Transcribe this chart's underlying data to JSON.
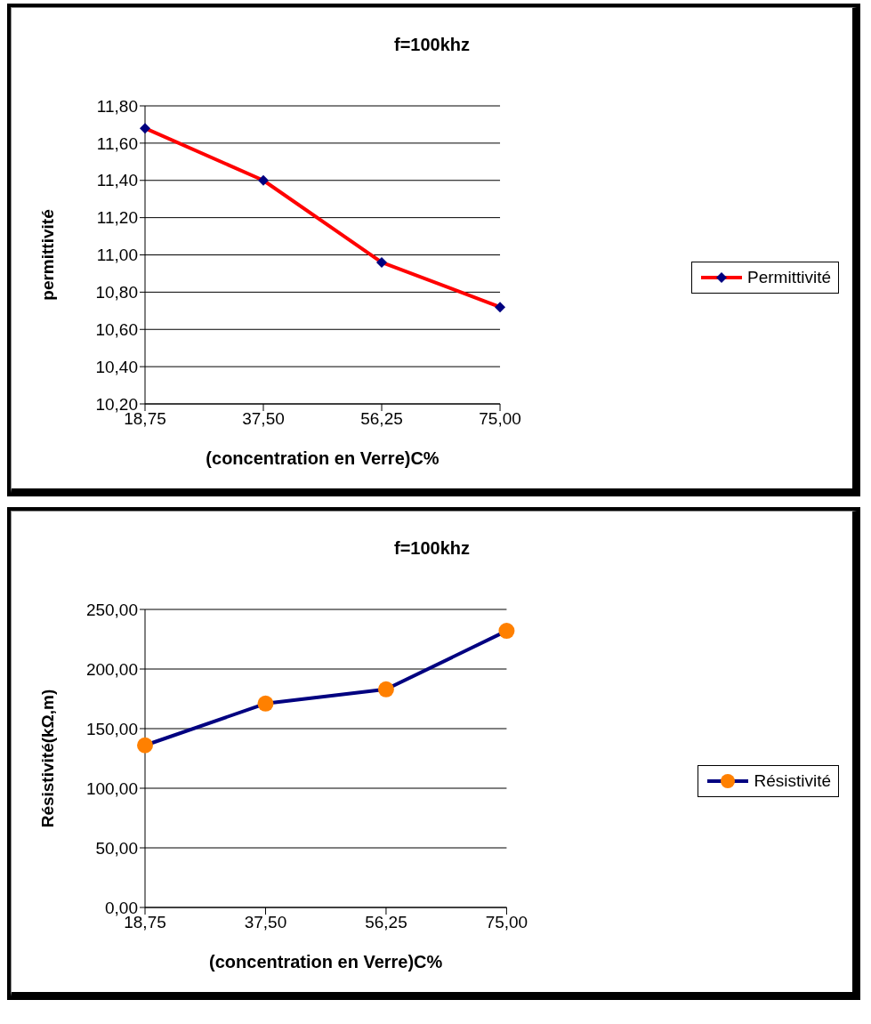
{
  "chart_data": [
    {
      "type": "line",
      "title": "f=100khz",
      "xlabel": "(concentration en Verre)C%",
      "ylabel": "permittivité",
      "categories": [
        "18,75",
        "37,50",
        "56,25",
        "75,00"
      ],
      "series": [
        {
          "name": "Permittivité",
          "color": "#ff0000",
          "colors": [
            "#000080",
            "#000080",
            "#000080",
            "#000080"
          ],
          "values": [
            11.68,
            11.4,
            10.96,
            10.72
          ]
        }
      ],
      "ylim": [
        10.2,
        11.8
      ],
      "yticks": [
        {
          "value": 10.2,
          "label": "10,20"
        },
        {
          "value": 10.4,
          "label": "10,40"
        },
        {
          "value": 10.6,
          "label": "10,60"
        },
        {
          "value": 10.8,
          "label": "10,80"
        },
        {
          "value": 11.0,
          "label": "11,00"
        },
        {
          "value": 11.2,
          "label": "11,20"
        },
        {
          "value": 11.4,
          "label": "11,40"
        },
        {
          "value": 11.6,
          "label": "11,60"
        },
        {
          "value": 11.8,
          "label": "11,80"
        }
      ],
      "grid": "y",
      "legend": "right",
      "marker": "diamond"
    },
    {
      "type": "line",
      "title": "f=100khz",
      "xlabel": "(concentration en Verre)C%",
      "ylabel": "Résistivité(kΩ,m)",
      "categories": [
        "18,75",
        "37,50",
        "56,25",
        "75,00"
      ],
      "series": [
        {
          "name": "Résistivité",
          "color": "#000080",
          "colors": [
            "#ff8000",
            "#ff8000",
            "#ff8000",
            "#ff8000"
          ],
          "values": [
            136,
            171,
            183,
            232
          ]
        }
      ],
      "ylim": [
        0,
        250
      ],
      "yticks": [
        {
          "value": 0,
          "label": "0,00"
        },
        {
          "value": 50,
          "label": "50,00"
        },
        {
          "value": 100,
          "label": "100,00"
        },
        {
          "value": 150,
          "label": "150,00"
        },
        {
          "value": 200,
          "label": "200,00"
        },
        {
          "value": 250,
          "label": "250,00"
        }
      ],
      "grid": "y",
      "legend": "right",
      "marker": "circle"
    }
  ]
}
